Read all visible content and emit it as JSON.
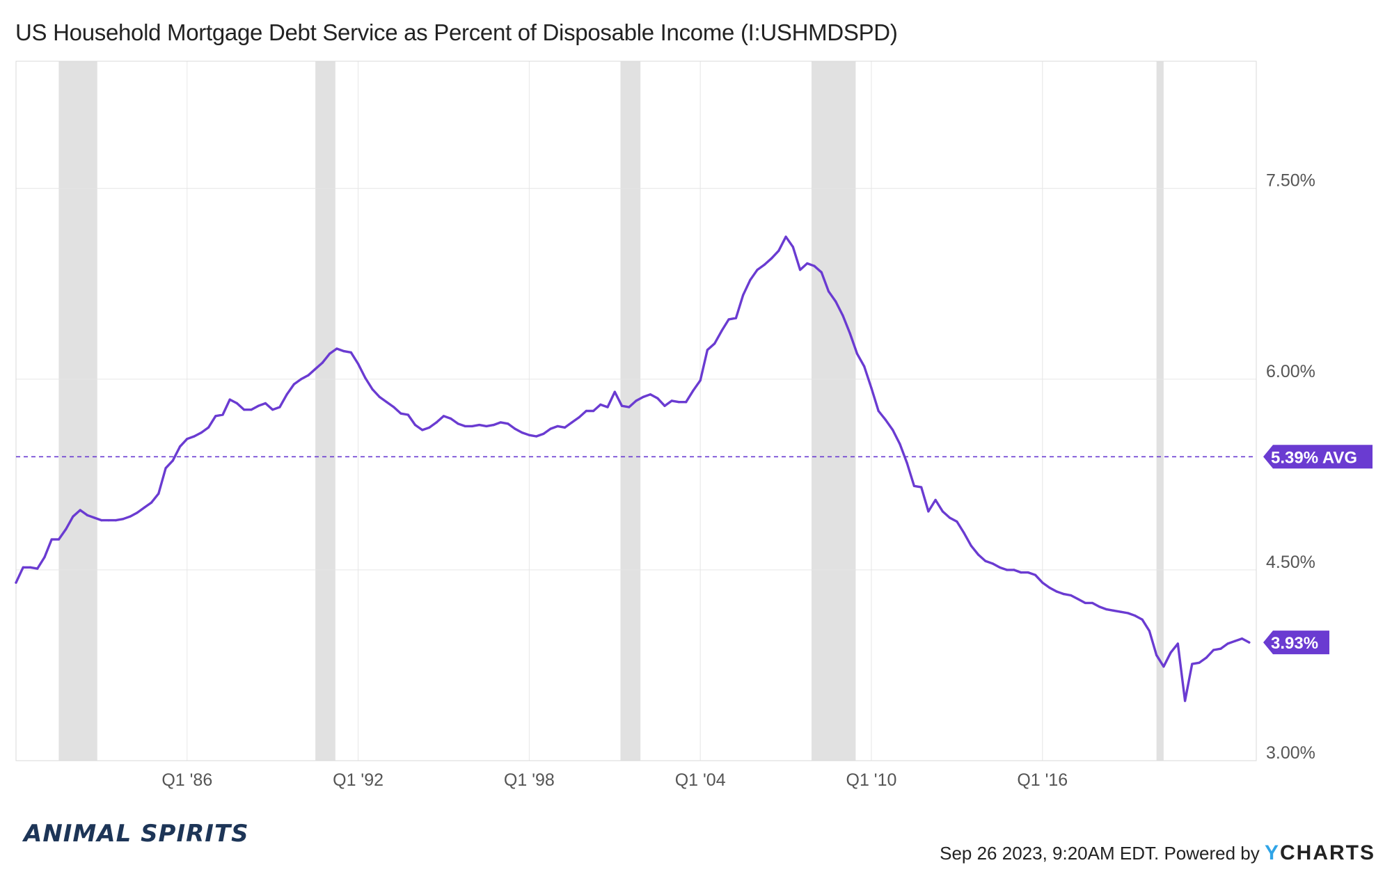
{
  "title": "US Household Mortgage Debt Service as Percent of Disposable Income (I:USHMDSPD)",
  "footer": {
    "brand": "ANIMAL SPIRITS",
    "timestamp": "Sep 26 2023, 9:20AM EDT.",
    "powered_by": "Powered by",
    "provider_y": "Y",
    "provider_rest": "CHARTS"
  },
  "colors": {
    "line": "#6a3bd1",
    "badge": "#6a3bd1",
    "recession": "#e1e1e1",
    "grid": "#e6e6e6",
    "axis_text": "#555555"
  },
  "chart_data": {
    "type": "line",
    "y_axis_position": "right",
    "ylim": [
      3.0,
      8.5
    ],
    "xlim": [
      1980.0,
      2023.5
    ],
    "grid": true,
    "x_ticks": [
      {
        "label": "Q1 '86",
        "value": 1986.0
      },
      {
        "label": "Q1 '92",
        "value": 1992.0
      },
      {
        "label": "Q1 '98",
        "value": 1998.0
      },
      {
        "label": "Q1 '04",
        "value": 2004.0
      },
      {
        "label": "Q1 '10",
        "value": 2010.0
      },
      {
        "label": "Q1 '16",
        "value": 2016.0
      }
    ],
    "y_ticks": [
      {
        "label": "3.00%",
        "value": 3.0
      },
      {
        "label": "4.50%",
        "value": 4.5
      },
      {
        "label": "6.00%",
        "value": 6.0
      },
      {
        "label": "7.50%",
        "value": 7.5
      }
    ],
    "recessions": [
      [
        1981.5,
        1982.85
      ],
      [
        1990.5,
        1991.2
      ],
      [
        2001.2,
        2001.9
      ],
      [
        2007.9,
        2009.45
      ],
      [
        2020.0,
        2020.25
      ]
    ],
    "average": {
      "value": 5.39,
      "label": "5.39% AVG"
    },
    "last": {
      "value": 3.93,
      "label": "3.93%"
    },
    "series": [
      {
        "points": [
          [
            1980.0,
            4.4
          ],
          [
            1980.25,
            4.52
          ],
          [
            1980.5,
            4.52
          ],
          [
            1980.75,
            4.51
          ],
          [
            1981.0,
            4.6
          ],
          [
            1981.25,
            4.74
          ],
          [
            1981.5,
            4.74
          ],
          [
            1981.75,
            4.82
          ],
          [
            1982.0,
            4.92
          ],
          [
            1982.25,
            4.97
          ],
          [
            1982.5,
            4.93
          ],
          [
            1982.75,
            4.91
          ],
          [
            1983.0,
            4.89
          ],
          [
            1983.25,
            4.89
          ],
          [
            1983.5,
            4.89
          ],
          [
            1983.75,
            4.9
          ],
          [
            1984.0,
            4.92
          ],
          [
            1984.25,
            4.95
          ],
          [
            1984.5,
            4.99
          ],
          [
            1984.75,
            5.03
          ],
          [
            1985.0,
            5.1
          ],
          [
            1985.25,
            5.3
          ],
          [
            1985.5,
            5.36
          ],
          [
            1985.75,
            5.47
          ],
          [
            1986.0,
            5.53
          ],
          [
            1986.25,
            5.55
          ],
          [
            1986.5,
            5.58
          ],
          [
            1986.75,
            5.62
          ],
          [
            1987.0,
            5.71
          ],
          [
            1987.25,
            5.72
          ],
          [
            1987.5,
            5.84
          ],
          [
            1987.75,
            5.81
          ],
          [
            1988.0,
            5.76
          ],
          [
            1988.25,
            5.76
          ],
          [
            1988.5,
            5.79
          ],
          [
            1988.75,
            5.81
          ],
          [
            1989.0,
            5.76
          ],
          [
            1989.25,
            5.78
          ],
          [
            1989.5,
            5.88
          ],
          [
            1989.75,
            5.96
          ],
          [
            1990.0,
            6.0
          ],
          [
            1990.25,
            6.03
          ],
          [
            1990.5,
            6.08
          ],
          [
            1990.75,
            6.13
          ],
          [
            1991.0,
            6.2
          ],
          [
            1991.25,
            6.24
          ],
          [
            1991.5,
            6.22
          ],
          [
            1991.75,
            6.21
          ],
          [
            1992.0,
            6.12
          ],
          [
            1992.25,
            6.01
          ],
          [
            1992.5,
            5.92
          ],
          [
            1992.75,
            5.86
          ],
          [
            1993.0,
            5.82
          ],
          [
            1993.25,
            5.78
          ],
          [
            1993.5,
            5.73
          ],
          [
            1993.75,
            5.72
          ],
          [
            1994.0,
            5.64
          ],
          [
            1994.25,
            5.6
          ],
          [
            1994.5,
            5.62
          ],
          [
            1994.75,
            5.66
          ],
          [
            1995.0,
            5.71
          ],
          [
            1995.25,
            5.69
          ],
          [
            1995.5,
            5.65
          ],
          [
            1995.75,
            5.63
          ],
          [
            1996.0,
            5.63
          ],
          [
            1996.25,
            5.64
          ],
          [
            1996.5,
            5.63
          ],
          [
            1996.75,
            5.64
          ],
          [
            1997.0,
            5.66
          ],
          [
            1997.25,
            5.65
          ],
          [
            1997.5,
            5.61
          ],
          [
            1997.75,
            5.58
          ],
          [
            1998.0,
            5.56
          ],
          [
            1998.25,
            5.55
          ],
          [
            1998.5,
            5.57
          ],
          [
            1998.75,
            5.61
          ],
          [
            1999.0,
            5.63
          ],
          [
            1999.25,
            5.62
          ],
          [
            1999.5,
            5.66
          ],
          [
            1999.75,
            5.7
          ],
          [
            2000.0,
            5.75
          ],
          [
            2000.25,
            5.75
          ],
          [
            2000.5,
            5.8
          ],
          [
            2000.75,
            5.78
          ],
          [
            2001.0,
            5.9
          ],
          [
            2001.25,
            5.79
          ],
          [
            2001.5,
            5.78
          ],
          [
            2001.75,
            5.83
          ],
          [
            2002.0,
            5.86
          ],
          [
            2002.25,
            5.88
          ],
          [
            2002.5,
            5.85
          ],
          [
            2002.75,
            5.79
          ],
          [
            2003.0,
            5.83
          ],
          [
            2003.25,
            5.82
          ],
          [
            2003.5,
            5.82
          ],
          [
            2003.75,
            5.91
          ],
          [
            2004.0,
            5.99
          ],
          [
            2004.25,
            6.23
          ],
          [
            2004.5,
            6.28
          ],
          [
            2004.75,
            6.38
          ],
          [
            2005.0,
            6.47
          ],
          [
            2005.25,
            6.48
          ],
          [
            2005.5,
            6.66
          ],
          [
            2005.75,
            6.78
          ],
          [
            2006.0,
            6.86
          ],
          [
            2006.25,
            6.9
          ],
          [
            2006.5,
            6.95
          ],
          [
            2006.75,
            7.01
          ],
          [
            2007.0,
            7.12
          ],
          [
            2007.25,
            7.04
          ],
          [
            2007.5,
            6.86
          ],
          [
            2007.75,
            6.91
          ],
          [
            2008.0,
            6.89
          ],
          [
            2008.25,
            6.84
          ],
          [
            2008.5,
            6.69
          ],
          [
            2008.75,
            6.61
          ],
          [
            2009.0,
            6.5
          ],
          [
            2009.25,
            6.36
          ],
          [
            2009.5,
            6.2
          ],
          [
            2009.75,
            6.1
          ],
          [
            2010.0,
            5.93
          ],
          [
            2010.25,
            5.75
          ],
          [
            2010.5,
            5.68
          ],
          [
            2010.75,
            5.6
          ],
          [
            2011.0,
            5.49
          ],
          [
            2011.25,
            5.34
          ],
          [
            2011.5,
            5.16
          ],
          [
            2011.75,
            5.15
          ],
          [
            2012.0,
            4.96
          ],
          [
            2012.25,
            5.05
          ],
          [
            2012.5,
            4.96
          ],
          [
            2012.75,
            4.91
          ],
          [
            2013.0,
            4.88
          ],
          [
            2013.25,
            4.79
          ],
          [
            2013.5,
            4.69
          ],
          [
            2013.75,
            4.62
          ],
          [
            2014.0,
            4.57
          ],
          [
            2014.25,
            4.55
          ],
          [
            2014.5,
            4.52
          ],
          [
            2014.75,
            4.5
          ],
          [
            2015.0,
            4.5
          ],
          [
            2015.25,
            4.48
          ],
          [
            2015.5,
            4.48
          ],
          [
            2015.75,
            4.46
          ],
          [
            2016.0,
            4.4
          ],
          [
            2016.25,
            4.36
          ],
          [
            2016.5,
            4.33
          ],
          [
            2016.75,
            4.31
          ],
          [
            2017.0,
            4.3
          ],
          [
            2017.25,
            4.27
          ],
          [
            2017.5,
            4.24
          ],
          [
            2017.75,
            4.24
          ],
          [
            2018.0,
            4.21
          ],
          [
            2018.25,
            4.19
          ],
          [
            2018.5,
            4.18
          ],
          [
            2018.75,
            4.17
          ],
          [
            2019.0,
            4.16
          ],
          [
            2019.25,
            4.14
          ],
          [
            2019.5,
            4.11
          ],
          [
            2019.75,
            4.02
          ],
          [
            2020.0,
            3.83
          ],
          [
            2020.25,
            3.74
          ],
          [
            2020.5,
            3.85
          ],
          [
            2020.75,
            3.92
          ],
          [
            2021.0,
            3.47
          ],
          [
            2021.25,
            3.76
          ],
          [
            2021.5,
            3.77
          ],
          [
            2021.75,
            3.81
          ],
          [
            2022.0,
            3.87
          ],
          [
            2022.25,
            3.88
          ],
          [
            2022.5,
            3.92
          ],
          [
            2022.75,
            3.94
          ],
          [
            2023.0,
            3.96
          ],
          [
            2023.25,
            3.93
          ]
        ]
      }
    ]
  }
}
